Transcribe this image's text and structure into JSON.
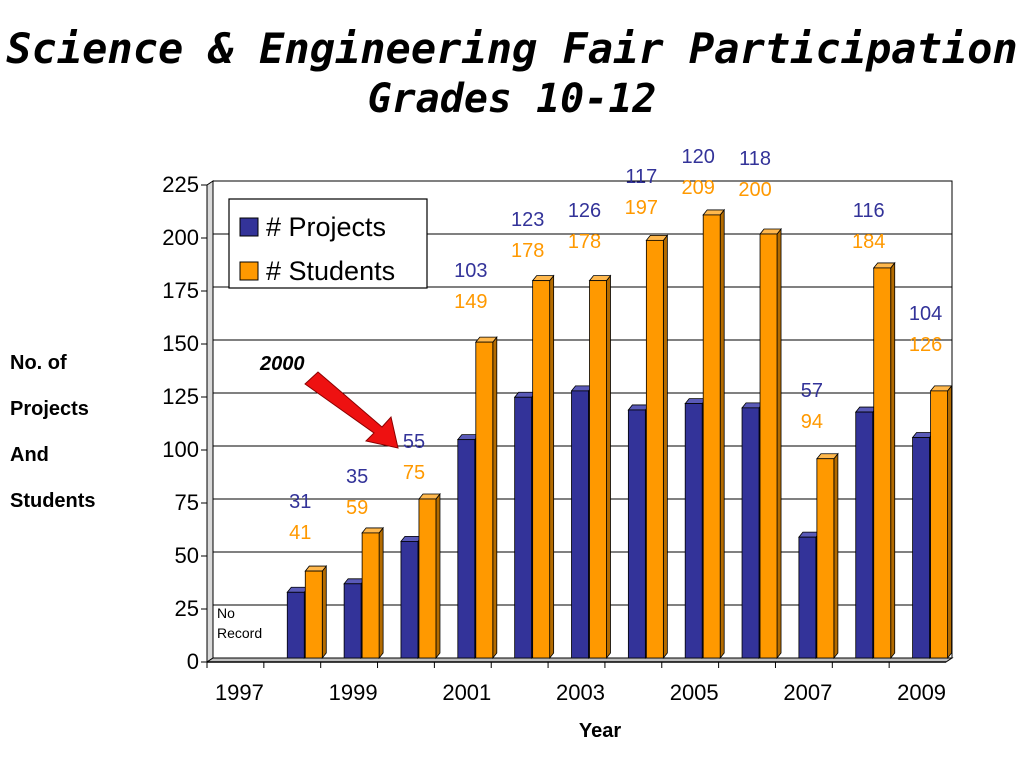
{
  "title": {
    "line1": "Science & Engineering Fair Participation",
    "line2": "Grades 10-12"
  },
  "ylabel_lines": [
    "No. of",
    "Projects",
    "And",
    "Students"
  ],
  "colors": {
    "projects": "#333399",
    "students": "#FF9900",
    "projects_side": "#1f1f66",
    "students_side": "#b36b00",
    "arrow": "#ee1111",
    "grid": "#000000"
  },
  "chart_data": {
    "type": "bar",
    "xlabel": "Year",
    "categories": [
      "1997",
      "1998",
      "1999",
      "2000",
      "2001",
      "2002",
      "2003",
      "2004",
      "2005",
      "2006",
      "2007",
      "2008",
      "2009"
    ],
    "x_tick_labels": [
      "1997",
      "1999",
      "2001",
      "2003",
      "2005",
      "2007",
      "2009"
    ],
    "ylim": [
      0,
      225
    ],
    "yticks": [
      "0",
      "25",
      "50",
      "75",
      "100",
      "125",
      "150",
      "175",
      "200",
      "225"
    ],
    "grid": true,
    "legend_position": "top-left",
    "series": [
      {
        "name": "# Projects",
        "values": [
          null,
          31,
          35,
          55,
          103,
          123,
          126,
          117,
          120,
          118,
          57,
          116,
          104
        ]
      },
      {
        "name": "# Students",
        "values": [
          null,
          41,
          59,
          75,
          149,
          178,
          178,
          197,
          209,
          200,
          94,
          184,
          126
        ]
      }
    ],
    "data_labels": [
      {
        "projects": "",
        "students": ""
      },
      {
        "projects": "31",
        "students": "41"
      },
      {
        "projects": "35",
        "students": "59"
      },
      {
        "projects": "55",
        "students": "75"
      },
      {
        "projects": "103",
        "students": "149"
      },
      {
        "projects": "123",
        "students": "178"
      },
      {
        "projects": "126",
        "students": "178"
      },
      {
        "projects": "117",
        "students": "197"
      },
      {
        "projects": "120",
        "students": "209"
      },
      {
        "projects": "118",
        "students": "200"
      },
      {
        "projects": "57",
        "students": "94"
      },
      {
        "projects": "116",
        "students": "184"
      },
      {
        "projects": "104",
        "students": "126"
      }
    ],
    "annotations": [
      {
        "text": "No Record",
        "category": "1997"
      },
      {
        "text": "2000",
        "category": "2000"
      }
    ]
  }
}
